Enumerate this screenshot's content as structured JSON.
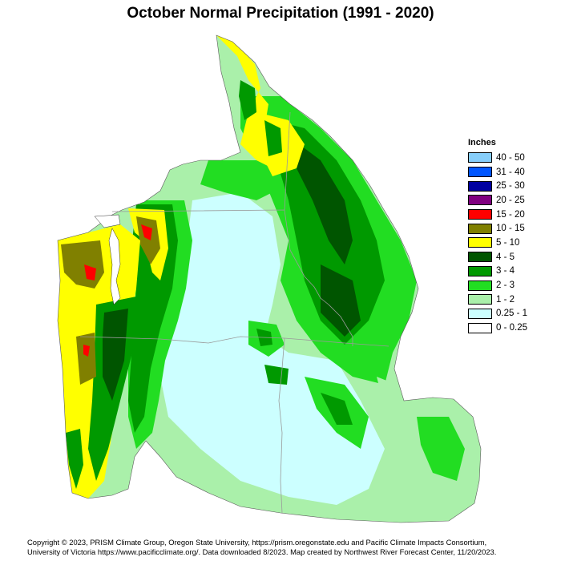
{
  "title": "October Normal Precipitation (1991 - 2020)",
  "legend": {
    "title": "Inches",
    "items": [
      {
        "label": "40 - 50",
        "color": "#87CEFA"
      },
      {
        "label": "31 - 40",
        "color": "#0055FF"
      },
      {
        "label": "25 - 30",
        "color": "#0000A0"
      },
      {
        "label": "20 - 25",
        "color": "#800080"
      },
      {
        "label": "15 - 20",
        "color": "#FF0000"
      },
      {
        "label": "10 - 15",
        "color": "#808000"
      },
      {
        "label": "5 - 10",
        "color": "#FFFF00"
      },
      {
        "label": "4 - 5",
        "color": "#005500"
      },
      {
        "label": "3 - 4",
        "color": "#009900"
      },
      {
        "label": "2 - 3",
        "color": "#22DD22"
      },
      {
        "label": "1 - 2",
        "color": "#AAF0AA"
      },
      {
        "label": "0.25 - 1",
        "color": "#CCFFFF"
      },
      {
        "label": "0 - 0.25",
        "color": "#FFFFFF"
      }
    ]
  },
  "credits": {
    "line1": "Copyright © 2023, PRISM Climate Group, Oregon State University, https://prism.oregonstate.edu and Pacific Climate Impacts Consortium,",
    "line2": "University of Victoria https://www.pacificclimate.org/.  Data downloaded 8/2023. Map created by Northwest River Forecast Center, 11/20/2023."
  }
}
